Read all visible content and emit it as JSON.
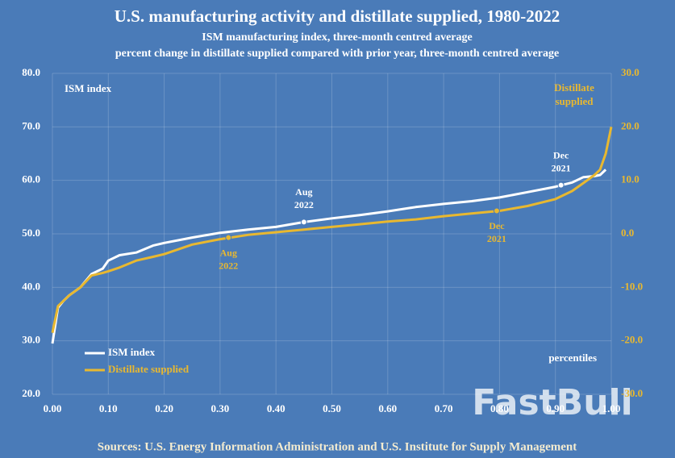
{
  "chart_data": {
    "type": "line",
    "title": "U.S. manufacturing activity and distillate supplied, 1980-2022",
    "subtitle": [
      "ISM manufacturing index, three-month centred average",
      "percent change in distillate supplied compared with prior year, three-month centred average"
    ],
    "x_label": "percentiles",
    "y_label": "ISM index",
    "y2_label": [
      "Distillate",
      "supplied"
    ],
    "source": "Sources: U.S. Energy Information Administration and U.S. Institute for Supply Management",
    "watermark": "FastBull",
    "x": [
      0,
      0.01,
      0.02,
      0.03,
      0.05,
      0.07,
      0.09,
      0.1,
      0.12,
      0.15,
      0.18,
      0.2,
      0.25,
      0.3,
      0.35,
      0.4,
      0.45,
      0.5,
      0.55,
      0.6,
      0.65,
      0.7,
      0.75,
      0.8,
      0.85,
      0.9,
      0.93,
      0.95,
      0.97,
      0.98,
      0.99,
      1.0
    ],
    "series": [
      {
        "name": "ISM index",
        "color": "#ffffff",
        "axis": "y",
        "values": [
          29.5,
          36.2,
          37.5,
          38.5,
          40,
          42.5,
          43.5,
          45,
          46,
          46.5,
          47.8,
          48.3,
          49.3,
          50.2,
          50.8,
          51.3,
          52.2,
          52.9,
          53.5,
          54.2,
          55,
          55.6,
          56.1,
          56.8,
          57.8,
          58.8,
          59.6,
          60.6,
          60.8,
          61,
          62,
          null
        ]
      },
      {
        "name": "Distillate supplied",
        "color": "#e8b830",
        "axis": "y2",
        "values": [
          -18.5,
          -13.5,
          -12.5,
          -11.5,
          -10,
          -7.8,
          -7.3,
          -7,
          -6.3,
          -5,
          -4.3,
          -3.8,
          -2,
          -1,
          -0.2,
          0.3,
          0.8,
          1.3,
          1.8,
          2.3,
          2.7,
          3.3,
          3.8,
          4.3,
          5.2,
          6.5,
          8,
          9.5,
          11,
          12,
          15,
          20
        ]
      }
    ],
    "annotations": [
      {
        "text": [
          "Aug",
          "2022"
        ],
        "x": 0.45,
        "y": 52.2,
        "series": 0,
        "position": "above"
      },
      {
        "text": [
          "Dec",
          "2021"
        ],
        "x": 0.91,
        "y": 59.1,
        "series": 0,
        "position": "above"
      },
      {
        "text": [
          "Aug",
          "2022"
        ],
        "x": 0.315,
        "y": -0.7,
        "series": 1,
        "position": "below"
      },
      {
        "text": [
          "Dec",
          "2021"
        ],
        "x": 0.795,
        "y": 4.3,
        "series": 1,
        "position": "below"
      }
    ],
    "xlim": [
      0,
      1
    ],
    "ylim": [
      20,
      80
    ],
    "y2lim": [
      -30,
      30
    ],
    "xticks": [
      {
        "value": 0,
        "label": "0.00"
      },
      {
        "value": 0.1,
        "label": "0.10"
      },
      {
        "value": 0.2,
        "label": "0.20"
      },
      {
        "value": 0.3,
        "label": "0.30"
      },
      {
        "value": 0.4,
        "label": "0.40"
      },
      {
        "value": 0.5,
        "label": "0.50"
      },
      {
        "value": 0.6,
        "label": "0.60"
      },
      {
        "value": 0.7,
        "label": "0.70"
      },
      {
        "value": 0.8,
        "label": "0.80"
      },
      {
        "value": 0.9,
        "label": "0.90"
      },
      {
        "value": 1,
        "label": "1.00"
      }
    ],
    "yticks": [
      {
        "value": 20,
        "label": "20.0"
      },
      {
        "value": 30,
        "label": "30.0"
      },
      {
        "value": 40,
        "label": "40.0"
      },
      {
        "value": 50,
        "label": "50.0"
      },
      {
        "value": 60,
        "label": "60.0"
      },
      {
        "value": 70,
        "label": "70.0"
      },
      {
        "value": 80,
        "label": "80.0"
      }
    ],
    "y2ticks": [
      {
        "value": -30,
        "label": "-30.0"
      },
      {
        "value": -20,
        "label": "-20.0"
      },
      {
        "value": -10,
        "label": "-10.0"
      },
      {
        "value": 0,
        "label": "0.0"
      },
      {
        "value": 10,
        "label": "10.0"
      },
      {
        "value": 20,
        "label": "20.0"
      },
      {
        "value": 30,
        "label": "30.0"
      }
    ],
    "grid": true,
    "legend": "lower-left"
  }
}
